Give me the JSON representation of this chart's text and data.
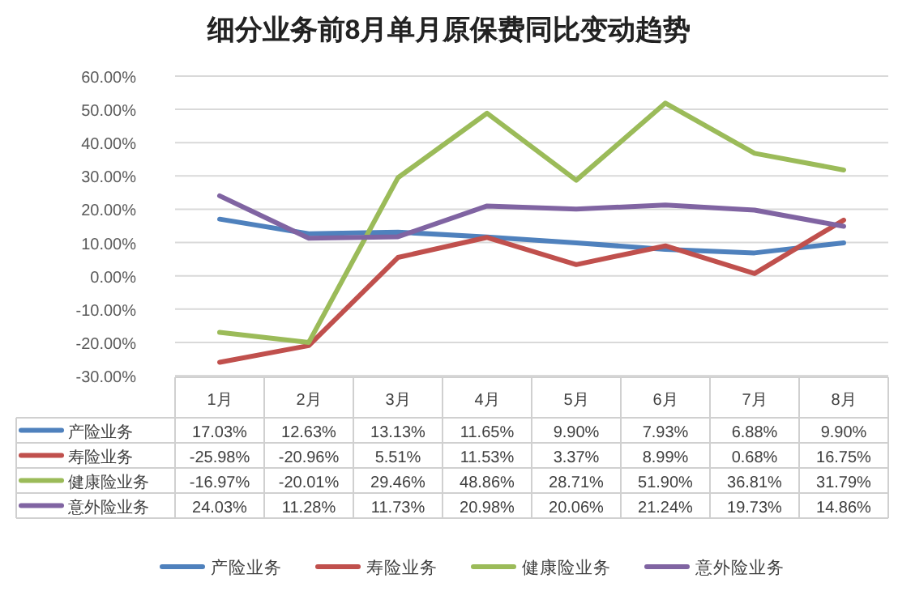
{
  "chart_data": {
    "type": "line",
    "title": "细分业务前8月单月原保费同比变动趋势",
    "categories": [
      "1月",
      "2月",
      "3月",
      "4月",
      "5月",
      "6月",
      "7月",
      "8月"
    ],
    "series": [
      {
        "name": "产险业务",
        "color": "#4f81bd",
        "values": [
          17.03,
          12.63,
          13.13,
          11.65,
          9.9,
          7.93,
          6.88,
          9.9
        ],
        "value_labels": [
          "17.03%",
          "12.63%",
          "13.13%",
          "11.65%",
          "9.90%",
          "7.93%",
          "6.88%",
          "9.90%"
        ]
      },
      {
        "name": "寿险业务",
        "color": "#c0504d",
        "values": [
          -25.98,
          -20.96,
          5.51,
          11.53,
          3.37,
          8.99,
          0.68,
          16.75
        ],
        "value_labels": [
          "-25.98%",
          "-20.96%",
          "5.51%",
          "11.53%",
          "3.37%",
          "8.99%",
          "0.68%",
          "16.75%"
        ]
      },
      {
        "name": "健康险业务",
        "color": "#9bbb59",
        "values": [
          -16.97,
          -20.01,
          29.46,
          48.86,
          28.71,
          51.9,
          36.81,
          31.79
        ],
        "value_labels": [
          "-16.97%",
          "-20.01%",
          "29.46%",
          "48.86%",
          "28.71%",
          "51.90%",
          "36.81%",
          "31.79%"
        ]
      },
      {
        "name": "意外险业务",
        "color": "#8064a2",
        "values": [
          24.03,
          11.28,
          11.73,
          20.98,
          20.06,
          21.24,
          19.73,
          14.86
        ],
        "value_labels": [
          "24.03%",
          "11.28%",
          "11.73%",
          "20.98%",
          "20.06%",
          "21.24%",
          "19.73%",
          "14.86%"
        ]
      }
    ],
    "ylim": [
      -30,
      60
    ],
    "yticks": [
      {
        "value": -30,
        "label": "-30.00%"
      },
      {
        "value": -20,
        "label": "-20.00%"
      },
      {
        "value": -10,
        "label": "-10.00%"
      },
      {
        "value": 0,
        "label": "0.00%"
      },
      {
        "value": 10,
        "label": "10.00%"
      },
      {
        "value": 20,
        "label": "20.00%"
      },
      {
        "value": 30,
        "label": "30.00%"
      },
      {
        "value": 40,
        "label": "40.00%"
      },
      {
        "value": 50,
        "label": "50.00%"
      },
      {
        "value": 60,
        "label": "60.00%"
      }
    ],
    "grid": "y",
    "legend": "bottom",
    "line_style": "solid",
    "marker": "none"
  }
}
